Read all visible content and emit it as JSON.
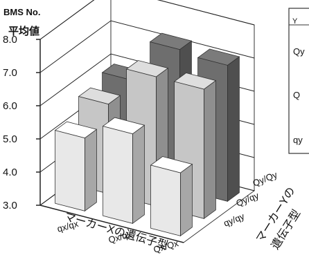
{
  "chart_data": {
    "type": "bar",
    "subtype": "3d-bar",
    "ylabel": [
      "BMS No.",
      "平均値"
    ],
    "ylim": [
      3.0,
      8.0
    ],
    "y_ticks": [
      "3.0",
      "4.0",
      "5.0",
      "6.0",
      "7.0",
      "8.0"
    ],
    "x_categories": [
      "qx/qx",
      "Qx/qx",
      "Qx/Qx"
    ],
    "x_axis_title": "マーカーXの遺伝子型",
    "depth_categories": [
      "qy/qy",
      "Qy/qy",
      "Qy/Qy"
    ],
    "depth_axis_title": [
      "マーカーYの",
      "遺伝子型"
    ],
    "legend_cut_labels": [
      "Y",
      "Qy",
      "Q",
      "qy"
    ],
    "grid": true,
    "colors": {
      "qy/qy": "#e8e8e8",
      "Qy/qy": "#c6c6c6",
      "Qy/Qy": "#6e6e6e"
    },
    "series": [
      {
        "name": "qy/qy",
        "values": [
          5.2,
          5.7,
          4.9
        ]
      },
      {
        "name": "Qy/qy",
        "values": [
          5.7,
          6.9,
          6.9
        ]
      },
      {
        "name": "Qy/Qy",
        "values": [
          5.9,
          7.2,
          7.1
        ]
      }
    ]
  }
}
